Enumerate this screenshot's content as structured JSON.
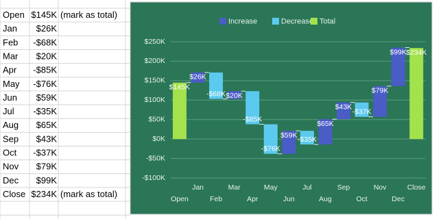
{
  "table": {
    "rows": [
      [
        "Open",
        "$145K",
        "(mark as total)"
      ],
      [
        "Jan",
        "$26K"
      ],
      [
        "Feb",
        "-$68K"
      ],
      [
        "Mar",
        "$20K"
      ],
      [
        "Apr",
        "-$85K"
      ],
      [
        "May",
        "-$76K"
      ],
      [
        "Jun",
        "$59K"
      ],
      [
        "Jul",
        "-$35K"
      ],
      [
        "Aug",
        "$65K"
      ],
      [
        "Sep",
        "$43K"
      ],
      [
        "Oct",
        "-$37K"
      ],
      [
        "Nov",
        "$79K"
      ],
      [
        "Dec",
        "$99K"
      ],
      [
        "Close",
        "$234K",
        "(mark as total)"
      ]
    ]
  },
  "chart_data": {
    "type": "waterfall",
    "categories": [
      "Open",
      "Jan",
      "Feb",
      "Mar",
      "Apr",
      "May",
      "Jun",
      "Jul",
      "Aug",
      "Sep",
      "Oct",
      "Nov",
      "Dec",
      "Close"
    ],
    "values": [
      145,
      26,
      -68,
      20,
      -85,
      -76,
      59,
      -35,
      65,
      43,
      -37,
      79,
      99,
      234
    ],
    "value_labels": [
      "$145K",
      "$26K",
      "-$68K",
      "$20K",
      "-$85K",
      "-$76K",
      "$59K",
      "-$35K",
      "$65K",
      "$43K",
      "-$37K",
      "$79K",
      "$99K",
      "$234K"
    ],
    "totals": [
      true,
      false,
      false,
      false,
      false,
      false,
      false,
      false,
      false,
      false,
      false,
      false,
      false,
      true
    ],
    "legend_entries": [
      {
        "name": "Increase",
        "color": "#4a5cc6"
      },
      {
        "name": "Decrease",
        "color": "#5cc9ee"
      },
      {
        "name": "Total",
        "color": "#a3e24c"
      }
    ],
    "legend_position": "top",
    "ylim": [
      -100,
      250
    ],
    "yticks": [
      {
        "value": -100,
        "label": "-$100K"
      },
      {
        "value": -50,
        "label": "-$50K"
      },
      {
        "value": 0,
        "label": "$0K"
      },
      {
        "value": 50,
        "label": "$50K"
      },
      {
        "value": 100,
        "label": "$100K"
      },
      {
        "value": 150,
        "label": "$150K"
      },
      {
        "value": 200,
        "label": "$200K"
      },
      {
        "value": 250,
        "label": "$250K"
      }
    ],
    "grid": true
  }
}
